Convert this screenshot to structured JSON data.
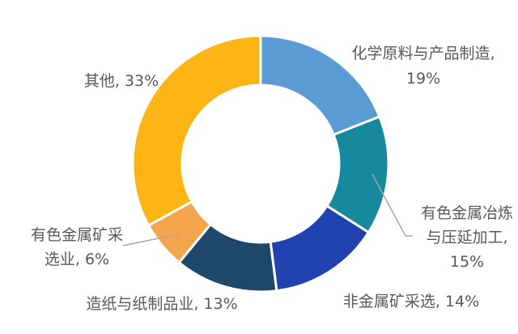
{
  "chart_data": {
    "type": "pie",
    "subtype": "donut",
    "title": "",
    "unit": "%",
    "direction": "clockwise",
    "start_angle_deg": 0,
    "legend": "none",
    "background": "#FFFFFF",
    "label_color": "#595959",
    "leader_line_color": "#A6A6A6",
    "segments": [
      {
        "label": "化学原料与产品制造",
        "value": 19,
        "color": "#5B9BD5",
        "display_lines": [
          "化学原料与产品制造,",
          "19%"
        ]
      },
      {
        "label": "有色金属冶炼与压延加工",
        "value": 15,
        "color": "#17899D",
        "display_lines": [
          "有色金属冶炼",
          "与压延加工,",
          "15%"
        ]
      },
      {
        "label": "非金属矿采选",
        "value": 14,
        "color": "#2143B1",
        "display_lines": [
          "非金属矿采选, 14%"
        ]
      },
      {
        "label": "造纸与纸制品业",
        "value": 13,
        "color": "#1F4769",
        "display_lines": [
          "造纸与纸制品业, 13%"
        ]
      },
      {
        "label": "有色金属矿采选业",
        "value": 6,
        "color": "#F5A54E",
        "display_lines": [
          "有色金属矿采",
          "选业, 6%"
        ]
      },
      {
        "label": "其他",
        "value": 33,
        "color": "#FCB514",
        "display_lines": [
          "其他, 33%"
        ]
      }
    ]
  }
}
